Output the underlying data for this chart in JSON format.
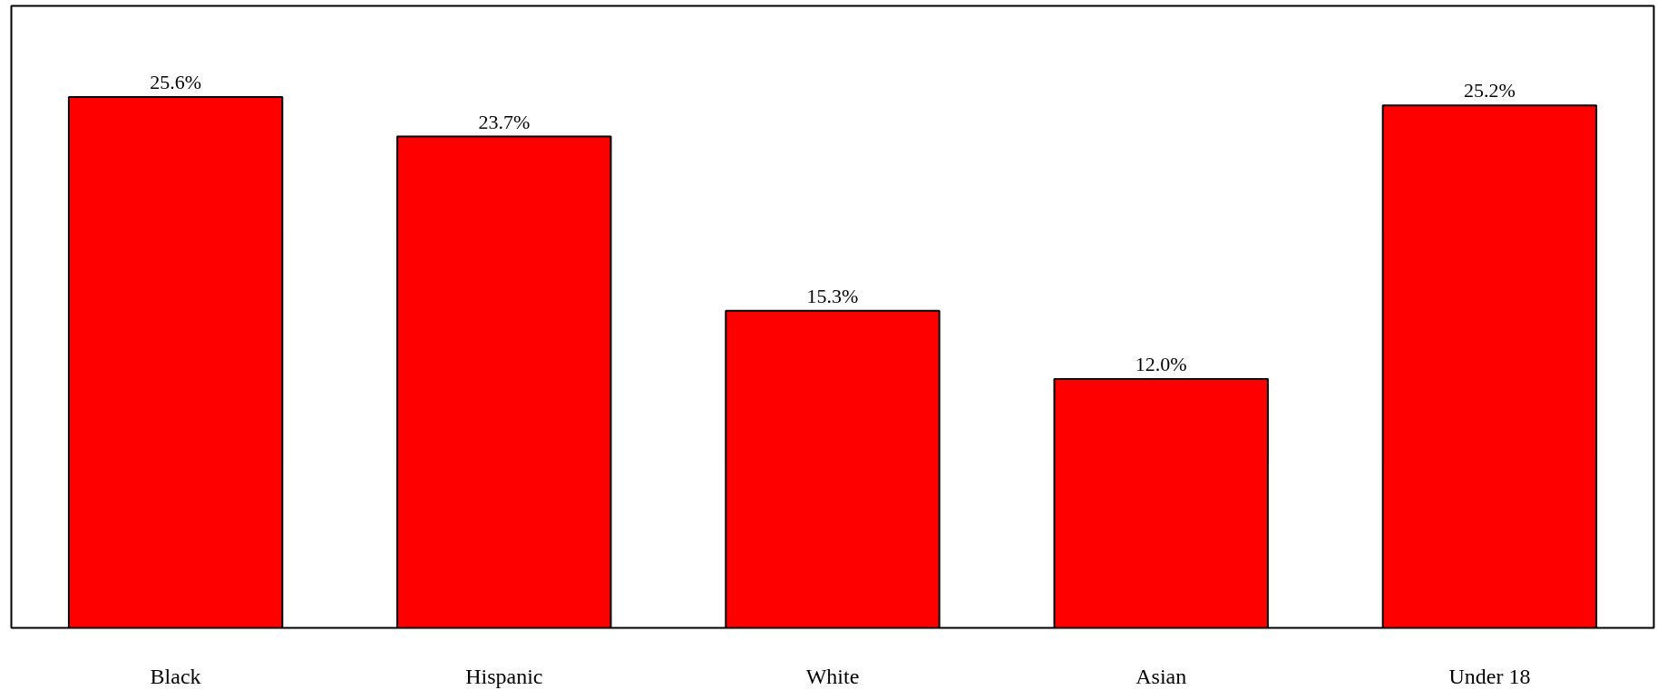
{
  "chart_data": {
    "type": "bar",
    "categories": [
      "Black",
      "Hispanic",
      "White",
      "Asian",
      "Under 18"
    ],
    "values": [
      25.6,
      23.7,
      15.3,
      12.0,
      25.2
    ],
    "value_labels": [
      "25.6%",
      "23.7%",
      "15.3%",
      "12.0%",
      "25.2%"
    ],
    "color": "#ff0000",
    "ylim": [
      0,
      30
    ],
    "grid": false
  }
}
